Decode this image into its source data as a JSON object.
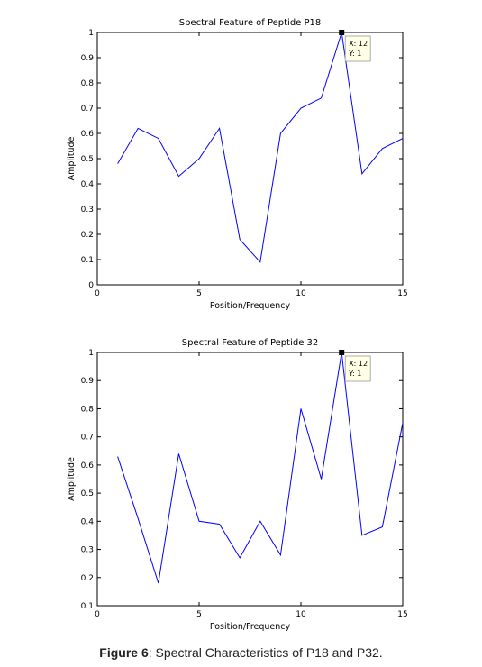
{
  "caption": {
    "label": "Figure 6",
    "text": ": Spectral Characteristics of P18 and P32."
  },
  "chart_data": [
    {
      "type": "line",
      "title": "Spectral Feature of Peptide P18",
      "xlabel": "Position/Frequency",
      "ylabel": "Amplitude",
      "xlim": [
        0,
        15
      ],
      "ylim": [
        0,
        1
      ],
      "xticks": [
        0,
        5,
        10,
        15
      ],
      "yticks": [
        0,
        0.1,
        0.2,
        0.3,
        0.4,
        0.5,
        0.6,
        0.7,
        0.8,
        0.9,
        1
      ],
      "grid": false,
      "line_color": "#0000ff",
      "x": [
        1,
        2,
        3,
        4,
        5,
        6,
        7,
        8,
        9,
        10,
        11,
        12,
        13,
        14,
        15
      ],
      "values": [
        0.48,
        0.62,
        0.58,
        0.43,
        0.5,
        0.62,
        0.18,
        0.09,
        0.6,
        0.7,
        0.74,
        1.0,
        0.44,
        0.54,
        0.58
      ],
      "datatip": {
        "x": 12,
        "y": 1,
        "x_text": "X: 12",
        "y_text": "Y: 1"
      }
    },
    {
      "type": "line",
      "title": "Spectral Feature of Peptide 32",
      "xlabel": "Position/Frequency",
      "ylabel": "Amplitude",
      "xlim": [
        0,
        15
      ],
      "ylim": [
        0.1,
        1
      ],
      "xticks": [
        0,
        5,
        10,
        15
      ],
      "yticks": [
        0.1,
        0.2,
        0.3,
        0.4,
        0.5,
        0.6,
        0.7,
        0.8,
        0.9,
        1
      ],
      "grid": false,
      "line_color": "#0000ff",
      "x": [
        1,
        2,
        3,
        4,
        5,
        6,
        7,
        8,
        9,
        10,
        11,
        12,
        13,
        14,
        15
      ],
      "values": [
        0.63,
        0.41,
        0.18,
        0.64,
        0.4,
        0.39,
        0.27,
        0.4,
        0.28,
        0.8,
        0.55,
        1.0,
        0.35,
        0.38,
        0.75
      ],
      "datatip": {
        "x": 12,
        "y": 1,
        "x_text": "X: 12",
        "y_text": "Y: 1"
      }
    }
  ]
}
